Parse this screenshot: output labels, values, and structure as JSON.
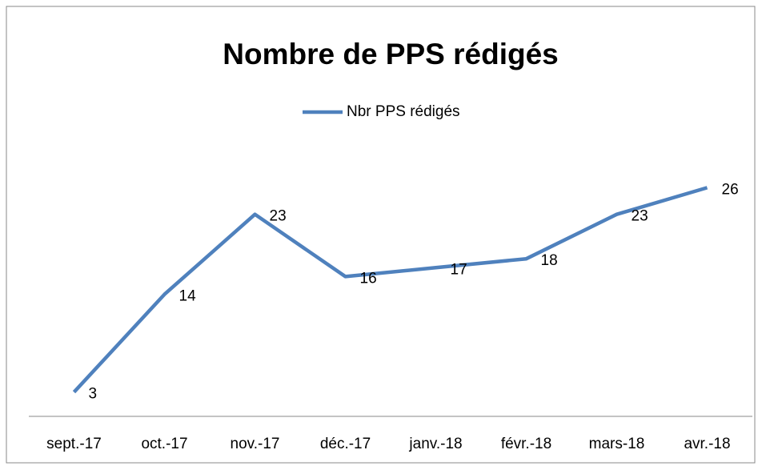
{
  "chart_data": {
    "type": "line",
    "title": "Nombre de PPS rédigés",
    "categories": [
      "sept.-17",
      "oct.-17",
      "nov.-17",
      "déc.-17",
      "janv.-18",
      "févr.-18",
      "mars-18",
      "avr.-18"
    ],
    "series": [
      {
        "name": "Nbr PPS rédigés",
        "color": "#4f81bd",
        "values": [
          3,
          14,
          23,
          16,
          17,
          18,
          23,
          26
        ]
      }
    ],
    "ylim": [
      0,
      30
    ],
    "legend": "top",
    "data_labels": true
  }
}
